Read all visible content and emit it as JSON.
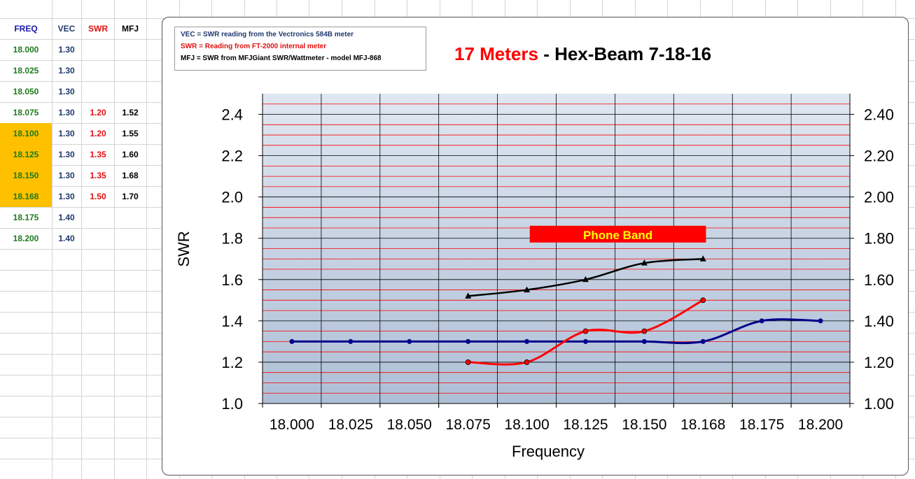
{
  "spreadsheet": {
    "headers": [
      {
        "label": "FREQ",
        "color": "#1a1aa8"
      },
      {
        "label": "VEC",
        "color": "#1f3a6e"
      },
      {
        "label": "SWR",
        "color": "#e01010"
      },
      {
        "label": "MFJ",
        "color": "#000000"
      }
    ],
    "rows": [
      {
        "freq": "18.000",
        "vec": "1.30",
        "swr": "",
        "mfj": "",
        "highlight": false
      },
      {
        "freq": "18.025",
        "vec": "1.30",
        "swr": "",
        "mfj": "",
        "highlight": false
      },
      {
        "freq": "18.050",
        "vec": "1.30",
        "swr": "",
        "mfj": "",
        "highlight": false
      },
      {
        "freq": "18.075",
        "vec": "1.30",
        "swr": "1.20",
        "mfj": "1.52",
        "highlight": false
      },
      {
        "freq": "18.100",
        "vec": "1.30",
        "swr": "1.20",
        "mfj": "1.55",
        "highlight": true
      },
      {
        "freq": "18.125",
        "vec": "1.30",
        "swr": "1.35",
        "mfj": "1.60",
        "highlight": true
      },
      {
        "freq": "18.150",
        "vec": "1.30",
        "swr": "1.35",
        "mfj": "1.68",
        "highlight": true
      },
      {
        "freq": "18.168",
        "vec": "1.30",
        "swr": "1.50",
        "mfj": "1.70",
        "highlight": true
      },
      {
        "freq": "18.175",
        "vec": "1.40",
        "swr": "",
        "mfj": "",
        "highlight": false
      },
      {
        "freq": "18.200",
        "vec": "1.40",
        "swr": "",
        "mfj": "",
        "highlight": false
      }
    ],
    "colors": {
      "freq": "#1e7b1e",
      "vec": "#1f3a6e",
      "swr": "#e01010",
      "mfj": "#000000",
      "highlight": "#ffc000",
      "gridline": "#d4d4d4"
    }
  },
  "legend": {
    "lines": [
      {
        "text": "VEC = SWR reading from the Vectronics 584B meter",
        "color": "#1f3a6e"
      },
      {
        "text": "SWR = Reading from FT-2000 internal meter",
        "color": "#e01010"
      },
      {
        "text": "MFJ  = SWR from MFJGiant SWR/Wattmeter - model MFJ-868",
        "color": "#000000"
      }
    ]
  },
  "chart_data": {
    "type": "line",
    "title_parts": [
      {
        "text": "17 Meters",
        "color": "#ff0000"
      },
      {
        "text": " - Hex-Beam 7-18-16",
        "color": "#000000"
      }
    ],
    "xlabel": "Frequency",
    "ylabel": "SWR",
    "categories": [
      "18.000",
      "18.025",
      "18.050",
      "18.075",
      "18.100",
      "18.125",
      "18.150",
      "18.168",
      "18.175",
      "18.200"
    ],
    "ylim": [
      1.0,
      2.5
    ],
    "y_ticks_left": [
      "1.0",
      "1.2",
      "1.4",
      "1.6",
      "1.8",
      "2.0",
      "2.2",
      "2.4"
    ],
    "y_ticks_right": [
      "1.00",
      "1.20",
      "1.40",
      "1.60",
      "1.80",
      "2.00",
      "2.20",
      "2.40"
    ],
    "series": [
      {
        "key": "vec",
        "color": "#00008b",
        "marker": "circle",
        "values": [
          1.3,
          1.3,
          1.3,
          1.3,
          1.3,
          1.3,
          1.3,
          1.3,
          1.4,
          1.4
        ]
      },
      {
        "key": "swr",
        "color": "#ff0000",
        "marker": "circle",
        "values": [
          null,
          null,
          null,
          1.2,
          1.2,
          1.35,
          1.35,
          1.5,
          null,
          null
        ]
      },
      {
        "key": "mfj",
        "color": "#000000",
        "marker": "triangle",
        "values": [
          null,
          null,
          null,
          1.52,
          1.55,
          1.6,
          1.68,
          1.7,
          null,
          null
        ]
      }
    ],
    "annotation": {
      "text": "Phone Band",
      "fill": "#ff0000",
      "text_color": "#ffff00"
    },
    "plot_gradient": [
      "#dfe7f1",
      "#aebfd6"
    ],
    "grid": true,
    "gridline_color_major": "#000000",
    "gridline_color_minor": "#ff0000"
  }
}
